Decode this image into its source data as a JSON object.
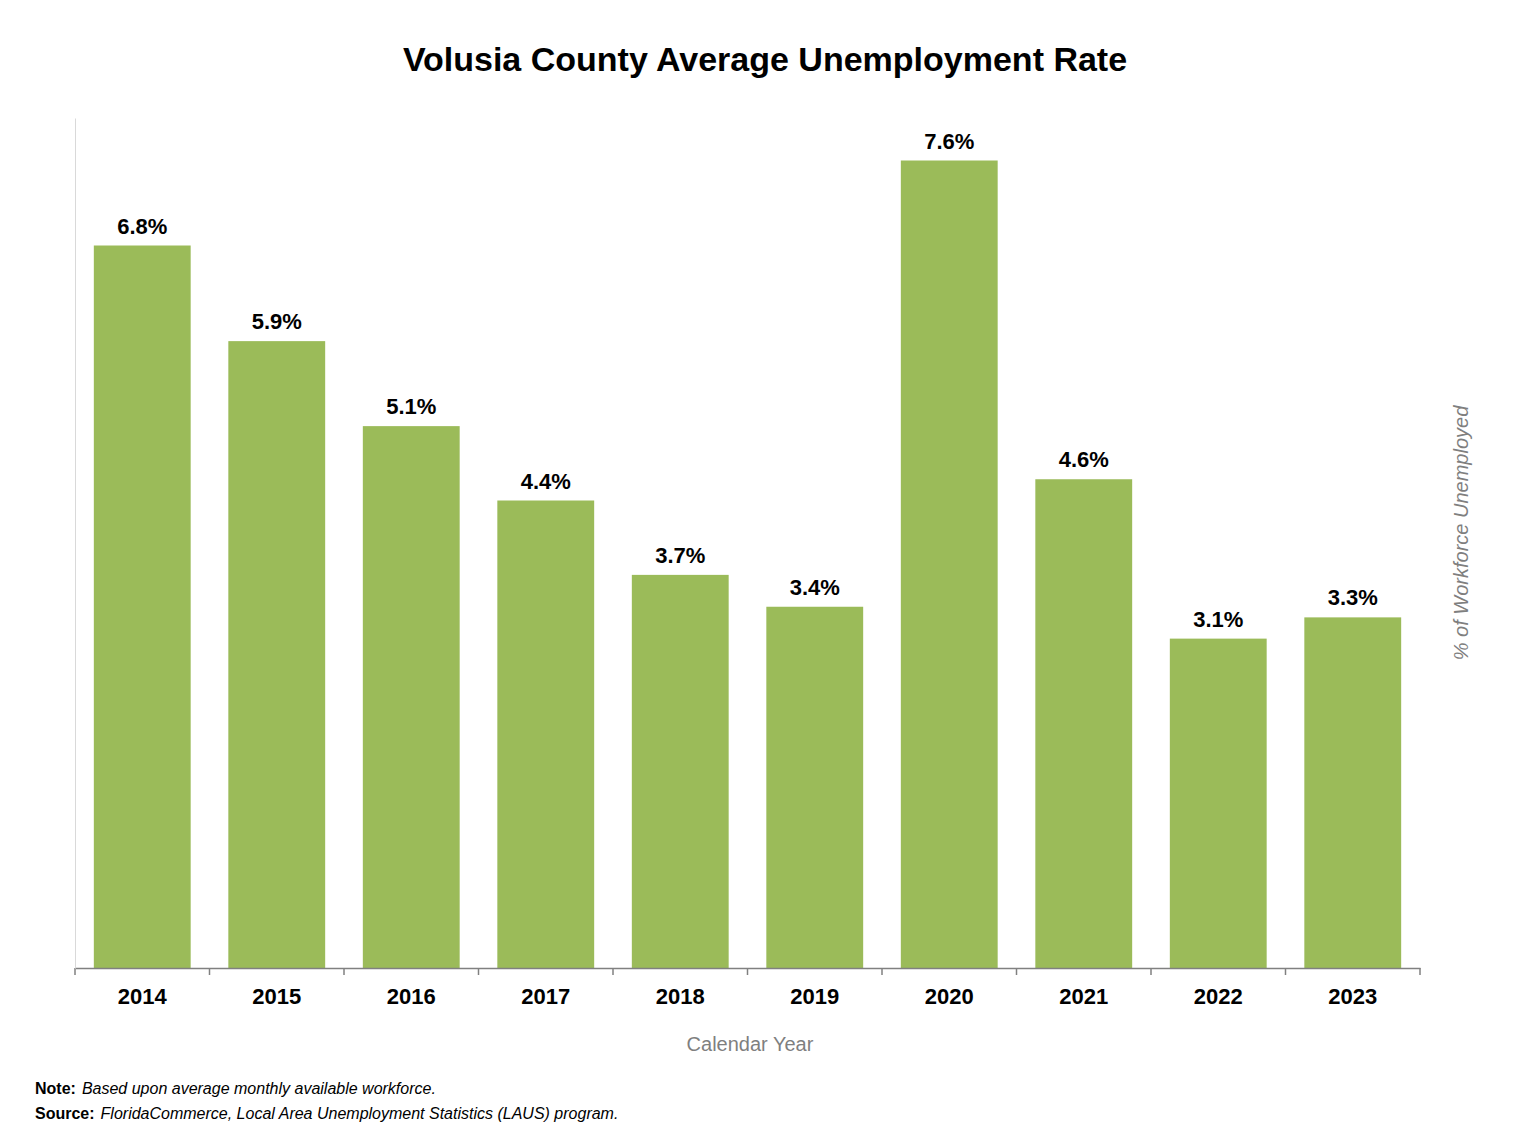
{
  "chart_data": {
    "type": "bar",
    "title": "Volusia County Average Unemployment Rate",
    "xlabel": "Calendar Year",
    "ylabel": "% of Workforce Unemployed",
    "categories": [
      "2014",
      "2015",
      "2016",
      "2017",
      "2018",
      "2019",
      "2020",
      "2021",
      "2022",
      "2023"
    ],
    "values": [
      6.8,
      5.9,
      5.1,
      4.4,
      3.7,
      3.4,
      7.6,
      4.6,
      3.1,
      3.3
    ],
    "value_labels": [
      "6.8%",
      "5.9%",
      "5.1%",
      "4.4%",
      "3.7%",
      "3.4%",
      "7.6%",
      "4.6%",
      "3.1%",
      "3.3%"
    ],
    "color": "#9bbb59",
    "ylim": [
      0,
      8
    ],
    "yticks": [],
    "data_labels": true,
    "tick_labels": "x",
    "annotations": [
      {
        "label": "Note:",
        "text": "Based upon average monthly available workforce."
      },
      {
        "label": "Source:",
        "text": "FloridaCommerce, Local Area Unemployment Statistics (LAUS) program."
      }
    ]
  }
}
